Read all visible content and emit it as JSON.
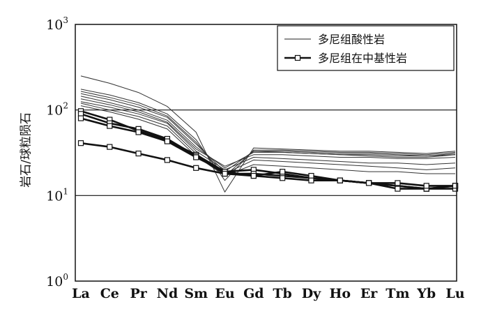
{
  "chart_data": {
    "type": "line",
    "yscale": "log",
    "ylim": [
      1,
      1000
    ],
    "ylabel": "岩石/球粒陨石",
    "xlabel": "",
    "title": "",
    "categories": [
      "La",
      "Ce",
      "Pr",
      "Nd",
      "Sm",
      "Eu",
      "Gd",
      "Tb",
      "Dy",
      "Ho",
      "Er",
      "Tm",
      "Yb",
      "Lu"
    ],
    "y_ticks": [
      {
        "value": 1,
        "base": "10",
        "exp": "0"
      },
      {
        "value": 10,
        "base": "10",
        "exp": "1"
      },
      {
        "value": 100,
        "base": "10",
        "exp": "2"
      },
      {
        "value": 1000,
        "base": "10",
        "exp": "3"
      }
    ],
    "gridlines_y": [
      10,
      100
    ],
    "legend": {
      "position": "top-right",
      "entries": [
        {
          "label": "多尼组酸性岩",
          "style": "thin-line"
        },
        {
          "label": "多尼组在中基性岩",
          "style": "thick-line-square"
        }
      ]
    },
    "series": [
      {
        "group": "acid",
        "values": [
          250,
          205,
          160,
          110,
          55,
          11,
          36,
          35,
          34,
          33,
          33,
          32,
          31,
          33
        ]
      },
      {
        "group": "acid",
        "values": [
          175,
          150,
          122,
          90,
          45,
          15,
          34,
          34,
          33,
          32,
          32,
          31,
          30,
          32
        ]
      },
      {
        "group": "acid",
        "values": [
          165,
          140,
          115,
          85,
          42,
          17,
          33,
          33,
          32,
          31,
          31,
          30,
          29,
          31
        ]
      },
      {
        "group": "acid",
        "values": [
          155,
          132,
          108,
          82,
          40,
          19,
          33,
          32,
          31,
          30,
          29,
          28,
          28,
          30
        ]
      },
      {
        "group": "acid",
        "values": [
          145,
          122,
          100,
          76,
          37,
          21,
          32,
          32,
          31,
          30,
          30,
          29,
          29,
          30
        ]
      },
      {
        "group": "acid",
        "values": [
          135,
          115,
          95,
          72,
          35,
          22,
          30,
          30,
          29,
          28,
          28,
          27,
          27,
          28
        ]
      },
      {
        "group": "acid",
        "values": [
          125,
          108,
          90,
          70,
          33,
          20,
          28,
          27,
          26,
          25,
          24,
          24,
          23,
          24
        ]
      },
      {
        "group": "acid",
        "values": [
          120,
          100,
          84,
          65,
          31,
          18,
          26,
          25,
          24,
          23,
          22,
          21,
          20,
          21
        ]
      },
      {
        "group": "acid",
        "values": [
          112,
          95,
          78,
          60,
          29,
          17,
          23,
          22,
          21,
          20,
          19,
          19,
          18,
          18
        ]
      },
      {
        "group": "intermediate-basic",
        "values": [
          97,
          77,
          57,
          44,
          30,
          19,
          20,
          18,
          16,
          15,
          14,
          13,
          12,
          13
        ]
      },
      {
        "group": "intermediate-basic",
        "values": [
          90,
          70,
          60,
          46,
          29,
          18,
          18,
          17,
          16,
          15,
          14,
          13,
          12,
          13
        ]
      },
      {
        "group": "intermediate-basic",
        "values": [
          80,
          65,
          55,
          43,
          28,
          19,
          17,
          19,
          17,
          15,
          14,
          12,
          12,
          12
        ]
      },
      {
        "group": "intermediate-basic",
        "values": [
          41,
          37,
          31,
          26,
          21,
          18,
          17,
          16,
          15,
          15,
          14,
          14,
          13,
          13
        ]
      }
    ]
  }
}
